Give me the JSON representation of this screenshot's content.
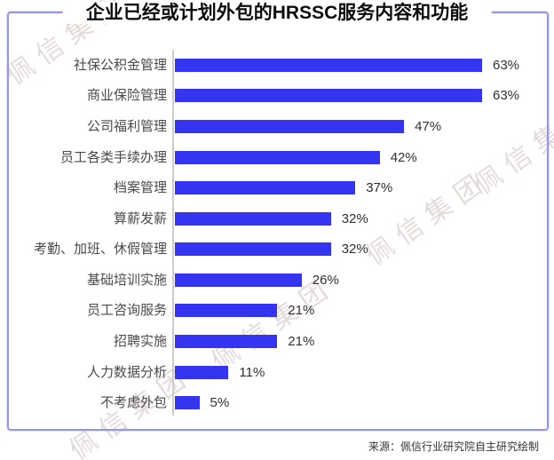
{
  "title": "企业已经或计划外包的HRSSC服务内容和功能",
  "chart_data": {
    "type": "bar",
    "orientation": "horizontal",
    "title": "企业已经或计划外包的HRSSC服务内容和功能",
    "categories": [
      "社保公积金管理",
      "商业保险管理",
      "公司福利管理",
      "员工各类手续办理",
      "档案管理",
      "算薪发薪",
      "考勤、加班、休假管理",
      "基础培训实施",
      "员工咨询服务",
      "招聘实施",
      "人力数据分析",
      "不考虑外包"
    ],
    "values": [
      63,
      63,
      47,
      42,
      37,
      32,
      32,
      26,
      21,
      21,
      11,
      5
    ],
    "value_suffix": "%",
    "xlim": [
      0,
      70
    ],
    "grid": false,
    "legend": false,
    "bar_color": "#3534f1",
    "axis_line_color": "#cccccc",
    "data_labels_shown": true
  },
  "frame": {
    "border_color": "#9393f1"
  },
  "source": {
    "label": "来源：佩信行业研究院自主研究绘制"
  },
  "watermark": {
    "text": "佩信集团",
    "color": "rgba(186,158,158,0.38)"
  }
}
